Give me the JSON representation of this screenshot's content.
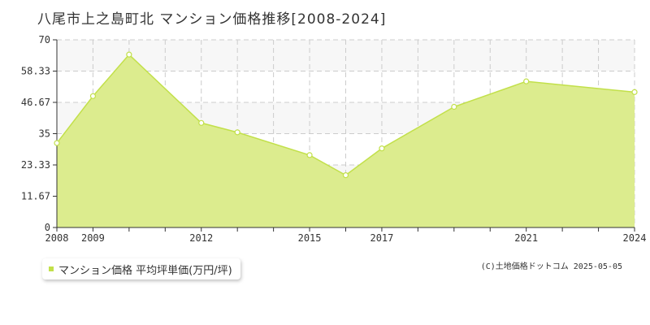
{
  "title": "八尾市上之島町北 マンション価格推移[2008-2024]",
  "legend_label": "マンション価格 平均坪単価(万円/坪)",
  "copyright": "(C)土地価格ドットコム 2025-05-05",
  "colors": {
    "fill": "#dcec8e",
    "line": "#c2e04a",
    "band": "#f7f7f7",
    "grid": "#cccccc",
    "axis": "#333333",
    "marker_fill": "#ffffff"
  },
  "chart_data": {
    "type": "area",
    "title": "八尾市上之島町北 マンション価格推移[2008-2024]",
    "xlabel": "",
    "ylabel": "",
    "xlim": [
      2008,
      2024
    ],
    "ylim": [
      0,
      70
    ],
    "y_ticks": [
      0,
      11.67,
      23.33,
      35,
      46.67,
      58.33,
      70
    ],
    "y_tick_labels": [
      "0",
      "11.67",
      "23.33",
      "35",
      "46.67",
      "58.33",
      "70"
    ],
    "x_ticks": [
      2008,
      2009,
      2010,
      2011,
      2012,
      2013,
      2014,
      2015,
      2016,
      2017,
      2018,
      2019,
      2020,
      2021,
      2022,
      2023,
      2024
    ],
    "x_tick_labels": [
      "2008",
      "2009",
      "2012",
      "2015",
      "2017",
      "2021",
      "2024"
    ],
    "x_tick_label_years": [
      2008,
      2009,
      2012,
      2015,
      2017,
      2021,
      2024
    ],
    "grid": true,
    "legend_position": "bottom-left",
    "series": [
      {
        "name": "マンション価格 平均坪単価(万円/坪)",
        "x": [
          2008,
          2009,
          2010,
          2012,
          2013,
          2015,
          2016,
          2017,
          2019,
          2021,
          2024
        ],
        "values": [
          31.5,
          49,
          64.5,
          39,
          35.5,
          27,
          19.5,
          29.5,
          45,
          54.5,
          50.5
        ]
      }
    ]
  }
}
